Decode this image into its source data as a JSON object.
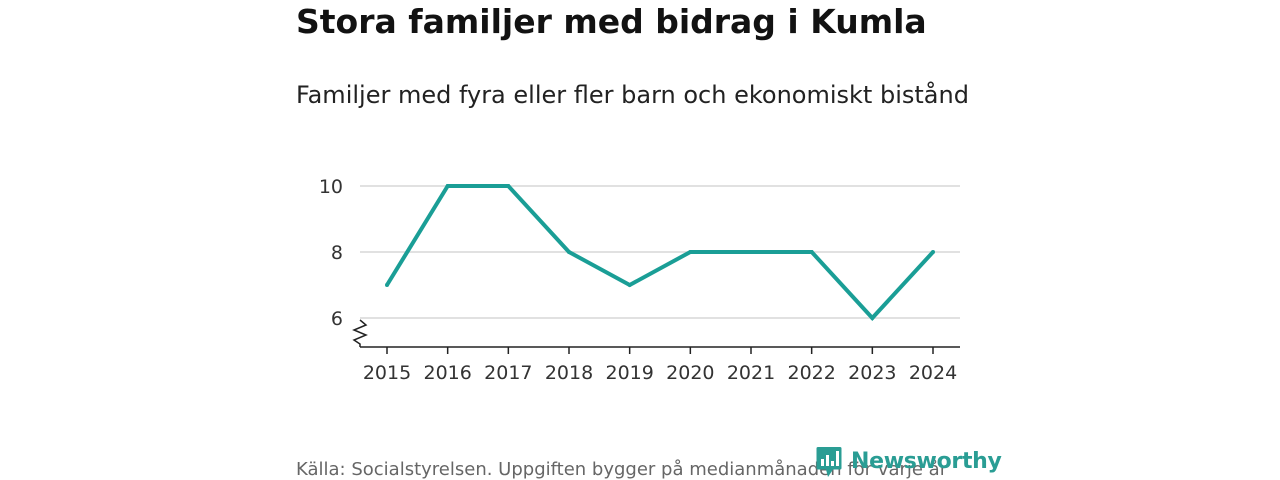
{
  "header": {
    "title": "Stora familjer med bidrag i Kumla",
    "subtitle": "Familjer med fyra eller fler barn och ekonomiskt bistånd"
  },
  "footer": {
    "source": "Källa: Socialstyrelsen. Uppgiften bygger på medianmånaden för varje år",
    "brand": "Newsworthy"
  },
  "colors": {
    "line": "#1a9e96",
    "grid": "#d7d7d7",
    "axis": "#222222",
    "brand": "#2a9d94"
  },
  "chart_data": {
    "type": "line",
    "title": "Stora familjer med bidrag i Kumla",
    "subtitle": "Familjer med fyra eller fler barn och ekonomiskt bistånd",
    "xlabel": "",
    "ylabel": "",
    "categories": [
      "2015",
      "2016",
      "2017",
      "2018",
      "2019",
      "2020",
      "2021",
      "2022",
      "2023",
      "2024"
    ],
    "series": [
      {
        "name": "Familjer med fyra eller fler barn och ekonomiskt bistånd",
        "values": [
          7,
          10,
          10,
          8,
          7,
          8,
          8,
          8,
          6,
          8
        ]
      }
    ],
    "yticks": [
      6,
      8,
      10
    ],
    "ylim": [
      5.1,
      10.6
    ],
    "axis_break": true,
    "grid": true,
    "legend": "none"
  }
}
